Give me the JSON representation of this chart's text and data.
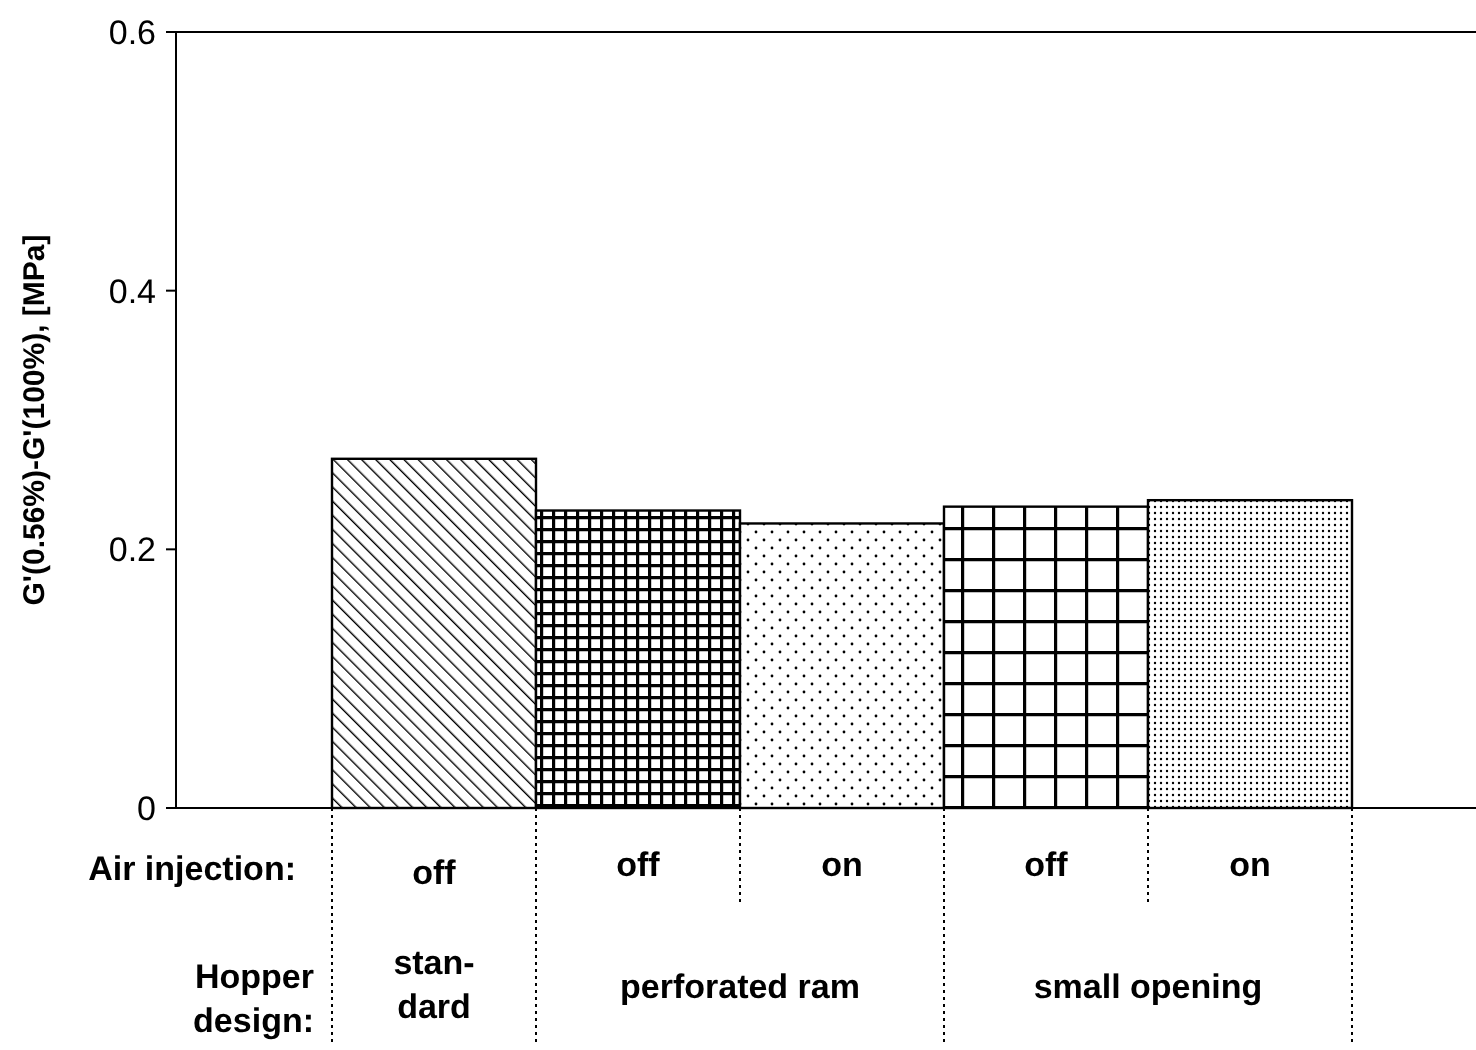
{
  "chart_data": {
    "type": "bar",
    "ylabel": "G'(0.56%)-G'(100%), [MPa]",
    "categories": [
      "off",
      "off",
      "on",
      "off",
      "on"
    ],
    "values": [
      0.27,
      0.23,
      0.22,
      0.233,
      0.238
    ],
    "color": "#000000",
    "ylim": [
      0,
      0.6
    ],
    "yticks": [
      {
        "value": 0,
        "label": "0"
      },
      0.2,
      0.4,
      0.6
    ],
    "grid": false,
    "annotations": [
      "Air injection:",
      "Hopper design:",
      "stan-\ndard",
      "perforated ram",
      "small opening"
    ]
  }
}
